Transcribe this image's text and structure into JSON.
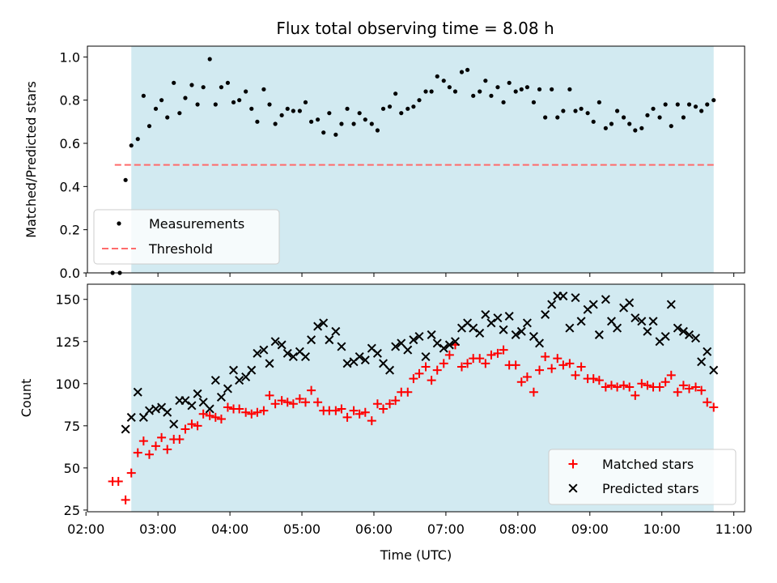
{
  "title": "Flux total observing time = 8.08 h",
  "colors": {
    "observing_span": "#add8e6",
    "measurement": "#000000",
    "threshold": "#ff6b6b",
    "matched": "#ff0000",
    "predicted": "#000000"
  },
  "chart_data": [
    {
      "type": "scatter",
      "ylabel": "Matched/Predicted stars",
      "ylim": [
        0,
        1.05
      ],
      "y_ticks": [
        "0.0",
        "0.2",
        "0.4",
        "0.6",
        "0.8",
        "1.0"
      ],
      "y_tick_values": [
        0,
        0.2,
        0.4,
        0.6,
        0.8,
        1.0
      ],
      "xlim_hours": [
        2.02,
        11.15
      ],
      "observing_span_hours": [
        2.63,
        10.72
      ],
      "legend": {
        "location": "lower-left",
        "entries": [
          "Measurements",
          "Threshold"
        ]
      },
      "threshold": {
        "name": "Threshold",
        "value": 0.5,
        "x_hours": [
          2.4,
          10.72
        ]
      },
      "series": [
        {
          "name": "Measurements",
          "x_hours": [
            2.37,
            2.47,
            2.55,
            2.63,
            2.72,
            2.8,
            2.88,
            2.97,
            3.05,
            3.13,
            3.22,
            3.3,
            3.38,
            3.47,
            3.55,
            3.63,
            3.72,
            3.8,
            3.88,
            3.97,
            4.05,
            4.13,
            4.22,
            4.3,
            4.38,
            4.47,
            4.55,
            4.63,
            4.72,
            4.8,
            4.88,
            4.97,
            5.05,
            5.13,
            5.22,
            5.3,
            5.38,
            5.47,
            5.55,
            5.63,
            5.72,
            5.8,
            5.88,
            5.97,
            6.05,
            6.13,
            6.22,
            6.3,
            6.38,
            6.47,
            6.55,
            6.63,
            6.72,
            6.8,
            6.88,
            6.97,
            7.05,
            7.13,
            7.22,
            7.3,
            7.38,
            7.47,
            7.55,
            7.63,
            7.72,
            7.8,
            7.88,
            7.97,
            8.05,
            8.13,
            8.22,
            8.3,
            8.38,
            8.47,
            8.55,
            8.63,
            8.72,
            8.8,
            8.88,
            8.97,
            9.05,
            9.13,
            9.22,
            9.3,
            9.38,
            9.47,
            9.55,
            9.63,
            9.72,
            9.8,
            9.88,
            9.97,
            10.05,
            10.13,
            10.22,
            10.3,
            10.38,
            10.47,
            10.55,
            10.63,
            10.72
          ],
          "y": [
            0.0,
            0.0,
            0.43,
            0.59,
            0.62,
            0.82,
            0.68,
            0.76,
            0.8,
            0.72,
            0.88,
            0.74,
            0.81,
            0.87,
            0.78,
            0.86,
            0.99,
            0.78,
            0.86,
            0.88,
            0.79,
            0.8,
            0.84,
            0.76,
            0.7,
            0.85,
            0.78,
            0.69,
            0.73,
            0.76,
            0.75,
            0.75,
            0.79,
            0.7,
            0.71,
            0.65,
            0.74,
            0.64,
            0.69,
            0.76,
            0.69,
            0.74,
            0.71,
            0.69,
            0.66,
            0.76,
            0.77,
            0.83,
            0.74,
            0.76,
            0.77,
            0.8,
            0.84,
            0.84,
            0.91,
            0.89,
            0.86,
            0.84,
            0.93,
            0.94,
            0.82,
            0.84,
            0.89,
            0.82,
            0.86,
            0.79,
            0.88,
            0.84,
            0.85,
            0.86,
            0.79,
            0.85,
            0.72,
            0.85,
            0.72,
            0.75,
            0.85,
            0.75,
            0.76,
            0.74,
            0.7,
            0.79,
            0.67,
            0.69,
            0.75,
            0.72,
            0.69,
            0.66,
            0.67,
            0.73,
            0.76,
            0.72,
            0.78,
            0.68,
            0.78,
            0.72,
            0.78,
            0.77,
            0.75,
            0.78,
            0.8
          ]
        }
      ]
    },
    {
      "type": "scatter",
      "xlabel": "Time (UTC)",
      "ylabel": "Count",
      "ylim": [
        24,
        159
      ],
      "y_ticks": [
        "25",
        "50",
        "75",
        "100",
        "125",
        "150"
      ],
      "y_tick_values": [
        25,
        50,
        75,
        100,
        125,
        150
      ],
      "xlim_hours": [
        2.02,
        11.15
      ],
      "x_ticks": [
        "02:00",
        "03:00",
        "04:00",
        "05:00",
        "06:00",
        "07:00",
        "08:00",
        "09:00",
        "10:00",
        "11:00"
      ],
      "x_tick_hours": [
        2,
        3,
        4,
        5,
        6,
        7,
        8,
        9,
        10,
        11
      ],
      "observing_span_hours": [
        2.63,
        10.72
      ],
      "legend": {
        "location": "lower-right",
        "entries": [
          "Matched stars",
          "Predicted stars"
        ]
      },
      "series": [
        {
          "name": "Matched stars",
          "marker": "plus",
          "x_hours": [
            2.37,
            2.45,
            2.55,
            2.63,
            2.72,
            2.8,
            2.88,
            2.97,
            3.05,
            3.13,
            3.22,
            3.3,
            3.38,
            3.47,
            3.55,
            3.63,
            3.72,
            3.8,
            3.88,
            3.97,
            4.05,
            4.13,
            4.22,
            4.3,
            4.38,
            4.47,
            4.55,
            4.63,
            4.72,
            4.8,
            4.88,
            4.97,
            5.05,
            5.13,
            5.22,
            5.3,
            5.38,
            5.47,
            5.55,
            5.63,
            5.72,
            5.8,
            5.88,
            5.97,
            6.05,
            6.13,
            6.22,
            6.3,
            6.38,
            6.47,
            6.55,
            6.63,
            6.72,
            6.8,
            6.88,
            6.97,
            7.05,
            7.13,
            7.22,
            7.3,
            7.38,
            7.47,
            7.55,
            7.63,
            7.72,
            7.8,
            7.88,
            7.97,
            8.05,
            8.13,
            8.22,
            8.3,
            8.38,
            8.47,
            8.55,
            8.63,
            8.72,
            8.8,
            8.88,
            8.97,
            9.05,
            9.13,
            9.22,
            9.3,
            9.38,
            9.47,
            9.55,
            9.63,
            9.72,
            9.8,
            9.88,
            9.97,
            10.05,
            10.13,
            10.22,
            10.3,
            10.38,
            10.47,
            10.55,
            10.63,
            10.72
          ],
          "y": [
            42,
            42,
            31,
            47,
            59,
            66,
            58,
            63,
            68,
            61,
            67,
            67,
            73,
            76,
            75,
            82,
            81,
            80,
            79,
            86,
            85,
            85,
            83,
            82,
            83,
            84,
            93,
            88,
            90,
            89,
            88,
            91,
            89,
            96,
            89,
            84,
            84,
            84,
            85,
            80,
            84,
            82,
            83,
            78,
            88,
            85,
            88,
            90,
            95,
            95,
            103,
            106,
            110,
            102,
            108,
            112,
            117,
            123,
            110,
            112,
            115,
            115,
            112,
            117,
            118,
            120,
            111,
            111,
            101,
            104,
            95,
            108,
            116,
            109,
            115,
            111,
            112,
            105,
            110,
            103,
            103,
            102,
            98,
            99,
            98,
            99,
            98,
            93,
            100,
            99,
            98,
            98,
            101,
            105,
            95,
            99,
            97,
            98,
            96,
            89,
            86
          ]
        },
        {
          "name": "Predicted stars",
          "marker": "x",
          "x_hours": [
            2.55,
            2.63,
            2.72,
            2.8,
            2.88,
            2.97,
            3.05,
            3.13,
            3.22,
            3.3,
            3.38,
            3.47,
            3.55,
            3.63,
            3.72,
            3.8,
            3.88,
            3.97,
            4.05,
            4.13,
            4.22,
            4.3,
            4.38,
            4.47,
            4.55,
            4.63,
            4.72,
            4.8,
            4.88,
            4.97,
            5.05,
            5.13,
            5.22,
            5.3,
            5.38,
            5.47,
            5.55,
            5.63,
            5.72,
            5.8,
            5.88,
            5.97,
            6.05,
            6.13,
            6.22,
            6.3,
            6.38,
            6.47,
            6.55,
            6.63,
            6.72,
            6.8,
            6.88,
            6.97,
            7.05,
            7.13,
            7.22,
            7.3,
            7.38,
            7.47,
            7.55,
            7.63,
            7.72,
            7.8,
            7.88,
            7.97,
            8.05,
            8.13,
            8.22,
            8.3,
            8.38,
            8.47,
            8.55,
            8.63,
            8.72,
            8.8,
            8.88,
            8.97,
            9.05,
            9.13,
            9.22,
            9.3,
            9.38,
            9.47,
            9.55,
            9.63,
            9.72,
            9.8,
            9.88,
            9.97,
            10.05,
            10.13,
            10.22,
            10.3,
            10.38,
            10.47,
            10.55,
            10.63,
            10.72
          ],
          "y": [
            73,
            80,
            95,
            80,
            84,
            85,
            86,
            83,
            76,
            90,
            90,
            87,
            94,
            89,
            85,
            102,
            92,
            97,
            108,
            102,
            104,
            108,
            118,
            120,
            112,
            125,
            123,
            118,
            116,
            119,
            116,
            126,
            134,
            136,
            126,
            131,
            122,
            112,
            113,
            116,
            114,
            121,
            118,
            112,
            108,
            122,
            124,
            120,
            126,
            128,
            116,
            129,
            124,
            121,
            123,
            125,
            133,
            136,
            133,
            130,
            141,
            136,
            139,
            132,
            140,
            129,
            131,
            136,
            128,
            124,
            141,
            147,
            152,
            152,
            133,
            151,
            137,
            144,
            147,
            129,
            150,
            137,
            133,
            145,
            148,
            139,
            137,
            131,
            137,
            125,
            128,
            147,
            133,
            131,
            129,
            127,
            113,
            119,
            108
          ]
        }
      ]
    }
  ]
}
